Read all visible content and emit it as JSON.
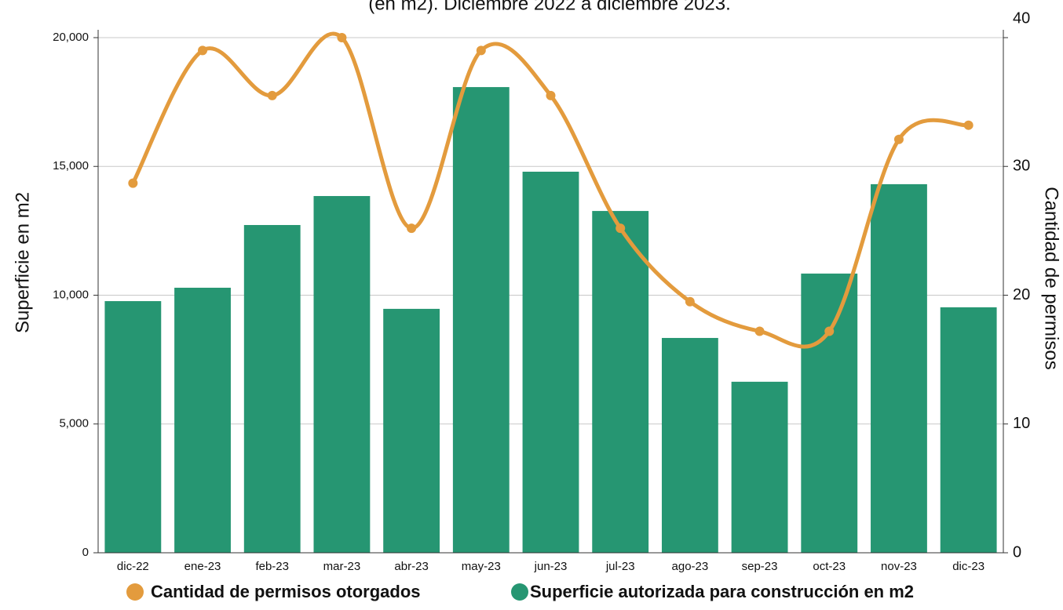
{
  "chart_data": {
    "type": "bar_line",
    "title": "(en m2). Diciembre 2022 a diciembre 2023.",
    "y_label": "Superficie en m2",
    "y2_label": "Cantidad de permisos",
    "categories": [
      "dic-22",
      "ene-23",
      "feb-23",
      "mar-23",
      "abr-23",
      "may-23",
      "jun-23",
      "jul-23",
      "ago-23",
      "sep-23",
      "oct-23",
      "nov-23",
      "dic-23"
    ],
    "series": [
      {
        "name": "Cantidad de permisos otorgados",
        "type": "line",
        "axis": "y2",
        "color": "#e39b3d",
        "values": [
          28.7,
          39,
          35.5,
          40,
          25.2,
          39,
          35.5,
          25.2,
          19.5,
          17.2,
          17.2,
          32.1,
          33.2
        ]
      },
      {
        "name": "Superficie autorizada para construcción en m2",
        "type": "bar",
        "axis": "y",
        "color": "#269672",
        "values": [
          9770,
          10290,
          12725,
          13850,
          9470,
          18080,
          14795,
          13270,
          8340,
          6640,
          10840,
          14310,
          9530
        ]
      }
    ],
    "ylim": [
      0,
      20000
    ],
    "yticks": [
      0,
      {
        "value": 5000,
        "label": "5,000"
      },
      {
        "value": 10000,
        "label": "10,000"
      },
      {
        "value": 15000,
        "label": "15,000"
      },
      {
        "value": 20000,
        "label": "20,000"
      }
    ],
    "y2lim": [
      0,
      40
    ],
    "y2ticks": [
      0,
      10,
      20,
      30,
      40
    ],
    "grid": true
  }
}
